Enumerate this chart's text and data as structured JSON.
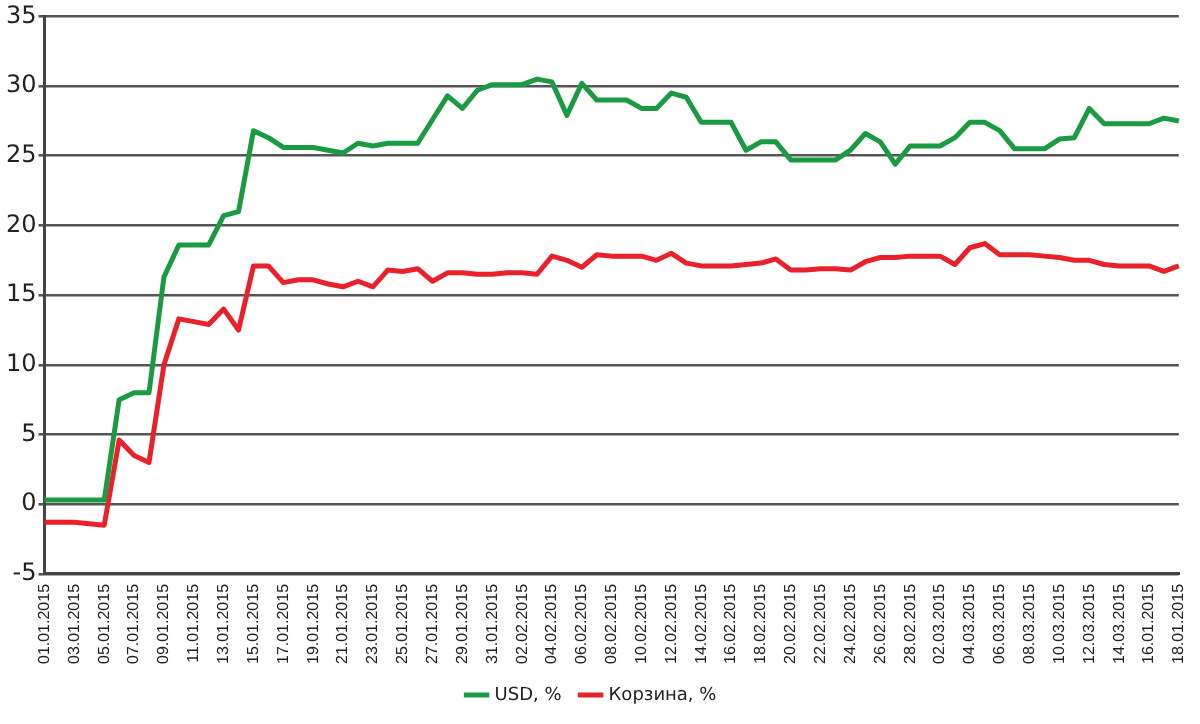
{
  "chart_data": {
    "type": "line",
    "categories": [
      "01.01.2015",
      null,
      "03.01.2015",
      null,
      "05.01.2015",
      null,
      "07.01.2015",
      null,
      "09.01.2015",
      null,
      "11.01.2015",
      null,
      "13.01.2015",
      null,
      "15.01.2015",
      null,
      "17.01.2015",
      null,
      "19.01.2015",
      null,
      "21.01.2015",
      null,
      "23.01.2015",
      null,
      "25.01.2015",
      null,
      "27.01.2015",
      null,
      "29.01.2015",
      null,
      "31.01.2015",
      null,
      "02.02.2015",
      null,
      "04.02.2015",
      null,
      "06.02.2015",
      null,
      "08.02.2015",
      null,
      "10.02.2015",
      null,
      "12.02.2015",
      null,
      "14.02.2015",
      null,
      "16.02.2015",
      null,
      "18.02.2015",
      null,
      "20.02.2015",
      null,
      "22.02.2015",
      null,
      "24.02.2015",
      null,
      "26.02.2015",
      null,
      "28.02.2015",
      null,
      "02.03.2015",
      null,
      "04.03.2015",
      null,
      "06.03.2015",
      null,
      "08.03.2015",
      null,
      "10.03.2015",
      null,
      "12.03.2015",
      null,
      "14.03.2015",
      null,
      "16.01.2015",
      null,
      "18.01.2015"
    ],
    "series": [
      {
        "name": "USD, %",
        "color": "#1a9a41",
        "values": [
          0.3,
          0.3,
          0.3,
          0.3,
          0.3,
          7.5,
          8.0,
          8.0,
          16.3,
          18.6,
          18.6,
          18.6,
          20.7,
          21.0,
          26.8,
          26.3,
          25.6,
          25.6,
          25.6,
          25.4,
          25.2,
          25.9,
          25.7,
          25.9,
          25.9,
          25.9,
          27.6,
          29.3,
          28.4,
          29.7,
          30.1,
          30.1,
          30.1,
          30.5,
          30.3,
          27.9,
          30.2,
          29.0,
          29.0,
          29.0,
          28.4,
          28.4,
          29.5,
          29.2,
          27.4,
          27.4,
          27.4,
          25.4,
          26.0,
          26.0,
          24.7,
          24.7,
          24.7,
          24.7,
          25.4,
          26.6,
          26.0,
          24.4,
          25.7,
          25.7,
          25.7,
          26.3,
          27.4,
          27.4,
          26.8,
          25.5,
          25.5,
          25.5,
          26.2,
          26.3,
          28.4,
          27.3,
          27.3,
          27.3,
          27.3,
          27.7,
          27.5
        ]
      },
      {
        "name": "Корзина, %",
        "color": "#e8212b",
        "values": [
          -1.3,
          -1.3,
          -1.3,
          -1.4,
          -1.5,
          4.6,
          3.5,
          3.0,
          10.0,
          13.3,
          13.1,
          12.9,
          14.0,
          12.5,
          17.1,
          17.1,
          15.9,
          16.1,
          16.1,
          15.8,
          15.6,
          16.0,
          15.6,
          16.8,
          16.7,
          16.9,
          16.0,
          16.6,
          16.6,
          16.5,
          16.5,
          16.6,
          16.6,
          16.5,
          17.8,
          17.5,
          17.0,
          17.9,
          17.8,
          17.8,
          17.8,
          17.5,
          18.0,
          17.3,
          17.1,
          17.1,
          17.1,
          17.2,
          17.3,
          17.6,
          16.8,
          16.8,
          16.9,
          16.9,
          16.8,
          17.4,
          17.7,
          17.7,
          17.8,
          17.8,
          17.8,
          17.2,
          18.4,
          18.7,
          17.9,
          17.9,
          17.9,
          17.8,
          17.7,
          17.5,
          17.5,
          17.2,
          17.1,
          17.1,
          17.1,
          16.7,
          17.1
        ]
      }
    ],
    "ylim": [
      -5,
      35
    ],
    "yticks": [
      -5,
      0,
      5,
      10,
      15,
      20,
      25,
      30,
      35
    ],
    "grid": "y",
    "legend": "bottom",
    "marker": "none",
    "line_style": "solid"
  }
}
